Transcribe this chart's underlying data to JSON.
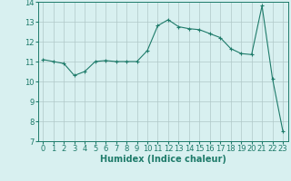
{
  "x": [
    0,
    1,
    2,
    3,
    4,
    5,
    6,
    7,
    8,
    9,
    10,
    11,
    12,
    13,
    14,
    15,
    16,
    17,
    18,
    19,
    20,
    21,
    22,
    23
  ],
  "y": [
    11.1,
    11.0,
    10.9,
    10.3,
    10.5,
    11.0,
    11.05,
    11.0,
    11.0,
    11.0,
    11.55,
    12.8,
    13.1,
    12.75,
    12.65,
    12.6,
    12.4,
    12.2,
    11.65,
    11.4,
    11.35,
    13.8,
    10.15,
    7.5
  ],
  "line_color": "#1e7b6a",
  "marker": "+",
  "bg_color": "#d8f0f0",
  "grid_color": "#b0c8c8",
  "xlabel": "Humidex (Indice chaleur)",
  "ylim": [
    7,
    14
  ],
  "xlim_min": -0.5,
  "xlim_max": 23.5,
  "yticks": [
    7,
    8,
    9,
    10,
    11,
    12,
    13,
    14
  ],
  "xticks": [
    0,
    1,
    2,
    3,
    4,
    5,
    6,
    7,
    8,
    9,
    10,
    11,
    12,
    13,
    14,
    15,
    16,
    17,
    18,
    19,
    20,
    21,
    22,
    23
  ],
  "tick_color": "#1e7b6a",
  "font_size": 6.0,
  "label_font_size": 7.0
}
